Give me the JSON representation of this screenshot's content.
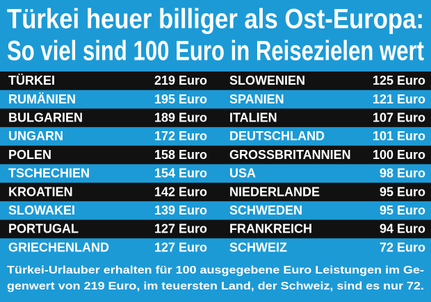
{
  "header": {
    "title_lines": [
      "Türkei heuer billiger als Ost-Europa:",
      "So viel sind 100 Euro in Reisezielen wert"
    ]
  },
  "table": {
    "rows": [
      [
        "TÜRKEI",
        "219 Euro",
        "SLOWENIEN",
        "125 Euro"
      ],
      [
        "RUMÄNIEN",
        "195 Euro",
        "SPANIEN",
        "121 Euro"
      ],
      [
        "BULGARIEN",
        "189 Euro",
        "ITALIEN",
        "107 Euro"
      ],
      [
        "UNGARN",
        "172 Euro",
        "DEUTSCHLAND",
        "101 Euro"
      ],
      [
        "POLEN",
        "158 Euro",
        "GROSSBRITANNIEN",
        "100 Euro"
      ],
      [
        "TSCHECHIEN",
        "154 Euro",
        "USA",
        "98 Euro"
      ],
      [
        "KROATIEN",
        "142 Euro",
        "NIEDERLANDE",
        "95 Euro"
      ],
      [
        "SLOWAKEI",
        "139 Euro",
        "SCHWEDEN",
        "95 Euro"
      ],
      [
        "PORTUGAL",
        "127 Euro",
        "FRANKREICH",
        "94 Euro"
      ],
      [
        "GRIECHENLAND",
        "127 Euro",
        "SCHWEIZ",
        "72 Euro"
      ]
    ]
  },
  "footer": {
    "lines": [
      "Türkei-Urlauber erhalten für 100 ausgegebene Euro Leistungen im Ge-",
      "genwert von 219 Euro, im teuersten Land, der Schweiz, sind es nur 72."
    ]
  }
}
